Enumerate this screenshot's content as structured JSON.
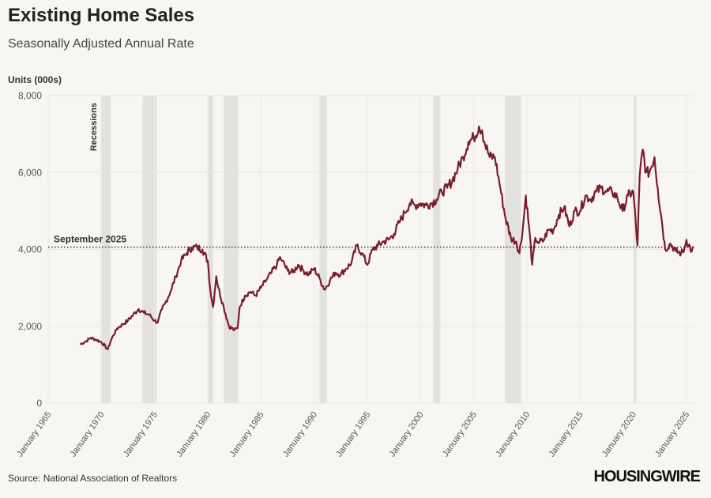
{
  "chart_data": {
    "type": "line",
    "title": "Existing Home Sales",
    "subtitle": "Seasonally Adjusted Annual Rate",
    "ylabel": "Units (000s)",
    "ylim": [
      0,
      8000
    ],
    "yticks": [
      "0",
      "2,000",
      "4,000",
      "6,000",
      "8,000"
    ],
    "ytick_values": [
      0,
      2000,
      4000,
      6000,
      8000
    ],
    "xlim": [
      1965,
      2025.6
    ],
    "xticks": [
      "January 1965",
      "January 1970",
      "January 1975",
      "January 1980",
      "January 1985",
      "January 1990",
      "January 1995",
      "January 2000",
      "January 2005",
      "January 2010",
      "January 2015",
      "January 2020",
      "January 2025"
    ],
    "xtick_values": [
      1965,
      1970,
      1975,
      1980,
      1985,
      1990,
      1995,
      2000,
      2005,
      2010,
      2015,
      2020,
      2025
    ],
    "grid": true,
    "line_color": "#7b1c2a",
    "recession_label": "Recessions",
    "recessions": [
      [
        1969.92,
        1970.87
      ],
      [
        1973.87,
        1975.2
      ],
      [
        1980.0,
        1980.5
      ],
      [
        1981.5,
        1982.87
      ],
      [
        1990.5,
        1991.2
      ],
      [
        2001.2,
        2001.87
      ],
      [
        2007.92,
        2009.45
      ],
      [
        2020.08,
        2020.3
      ]
    ],
    "reference_line": {
      "label": "September 2025",
      "value": 4060
    },
    "series": [
      {
        "x": [
          1968.0,
          1968.5,
          1969.0,
          1969.5,
          1970.0,
          1970.6,
          1971.0,
          1971.5,
          1972.0,
          1972.5,
          1973.0,
          1973.5,
          1974.0,
          1974.5,
          1975.0,
          1975.3,
          1975.7,
          1976.0,
          1976.5,
          1977.0,
          1977.5,
          1978.0,
          1978.5,
          1979.0,
          1979.5,
          1980.0,
          1980.3,
          1980.5,
          1980.8,
          1981.0,
          1981.5,
          1982.0,
          1982.5,
          1982.8,
          1983.0,
          1983.5,
          1984.0,
          1984.5,
          1985.0,
          1985.5,
          1986.0,
          1986.5,
          1986.8,
          1987.0,
          1987.5,
          1988.0,
          1988.5,
          1989.0,
          1989.5,
          1990.0,
          1990.5,
          1991.0,
          1991.5,
          1992.0,
          1992.5,
          1993.0,
          1993.5,
          1994.0,
          1994.5,
          1995.0,
          1995.5,
          1996.0,
          1996.5,
          1997.0,
          1997.5,
          1998.0,
          1998.5,
          1999.0,
          1999.5,
          2000.0,
          2000.5,
          2001.0,
          2001.5,
          2002.0,
          2002.5,
          2003.0,
          2003.5,
          2004.0,
          2004.5,
          2005.0,
          2005.5,
          2005.8,
          2006.0,
          2006.5,
          2007.0,
          2007.5,
          2008.0,
          2008.5,
          2009.0,
          2009.3,
          2009.6,
          2009.9,
          2010.2,
          2010.5,
          2010.8,
          2011.0,
          2011.5,
          2012.0,
          2012.5,
          2013.0,
          2013.5,
          2014.0,
          2014.5,
          2015.0,
          2015.5,
          2016.0,
          2016.5,
          2017.0,
          2017.5,
          2018.0,
          2018.5,
          2019.0,
          2019.5,
          2020.0,
          2020.4,
          2020.6,
          2020.9,
          2021.2,
          2021.5,
          2022.0,
          2022.3,
          2022.7,
          2023.0,
          2023.5,
          2024.0,
          2024.5,
          2024.8,
          2025.0,
          2025.5,
          2025.7
        ],
        "values": [
          1530,
          1600,
          1700,
          1650,
          1590,
          1400,
          1700,
          1950,
          2050,
          2150,
          2300,
          2450,
          2350,
          2300,
          2150,
          2100,
          2450,
          2600,
          2900,
          3300,
          3700,
          3900,
          4050,
          4050,
          4000,
          3700,
          2800,
          2500,
          3300,
          3000,
          2500,
          2000,
          1900,
          1950,
          2500,
          2800,
          2900,
          2800,
          3000,
          3200,
          3400,
          3600,
          3800,
          3700,
          3450,
          3400,
          3600,
          3450,
          3350,
          3500,
          3250,
          2950,
          3200,
          3400,
          3350,
          3500,
          3650,
          4100,
          3900,
          3600,
          4000,
          4100,
          4200,
          4250,
          4400,
          4700,
          4950,
          5200,
          5150,
          5200,
          5150,
          5200,
          5300,
          5500,
          5600,
          5800,
          6100,
          6400,
          6800,
          6900,
          7200,
          7100,
          6800,
          6400,
          6400,
          5600,
          4800,
          4300,
          4200,
          3900,
          4500,
          5400,
          4600,
          3600,
          4300,
          4200,
          4200,
          4500,
          4500,
          4900,
          5100,
          4600,
          5000,
          5000,
          5400,
          5300,
          5500,
          5600,
          5500,
          5500,
          5350,
          5000,
          5400,
          5500,
          4100,
          5900,
          6600,
          6000,
          6000,
          6400,
          5600,
          4700,
          4000,
          4150,
          3950,
          3900,
          4000,
          4250,
          3950,
          4060
        ]
      }
    ]
  },
  "source": "Source: National Association of Realtors",
  "logo": "HOUSINGWIRE"
}
